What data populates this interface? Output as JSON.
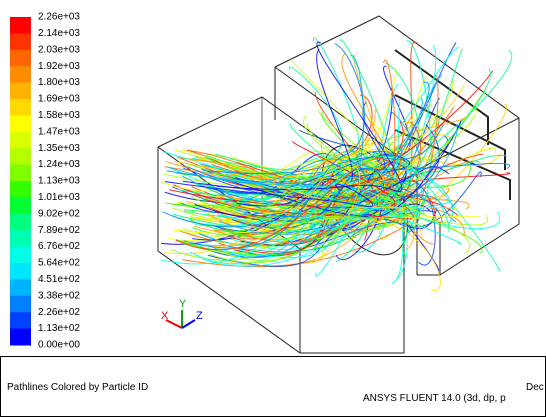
{
  "colorbar": {
    "labels": [
      "2.26e+03",
      "2.14e+03",
      "2.03e+03",
      "1.92e+03",
      "1.80e+03",
      "1.69e+03",
      "1.58e+03",
      "1.47e+03",
      "1.35e+03",
      "1.24e+03",
      "1.13e+03",
      "1.01e+03",
      "9.02e+02",
      "7.89e+02",
      "6.76e+02",
      "5.64e+02",
      "4.51e+02",
      "3.38e+02",
      "2.26e+02",
      "1.13e+02",
      "0.00e+00"
    ],
    "colors": [
      "#ff0000",
      "#ff3300",
      "#ff6600",
      "#ff8c00",
      "#ffb300",
      "#ffd900",
      "#ffff00",
      "#d9ff00",
      "#b3ff00",
      "#80ff00",
      "#33ff00",
      "#00ff33",
      "#00ff80",
      "#00ffb3",
      "#00ffe6",
      "#00e6ff",
      "#00b3ff",
      "#0080ff",
      "#0040ff",
      "#0000ff"
    ]
  },
  "axes": {
    "x": "X",
    "y": "Y",
    "z": "Z"
  },
  "footer": {
    "title": "Pathlines Colored by Particle ID",
    "date": "Dec",
    "solver": "ANSYS FLUENT 14.0 (3d, dp, p"
  }
}
